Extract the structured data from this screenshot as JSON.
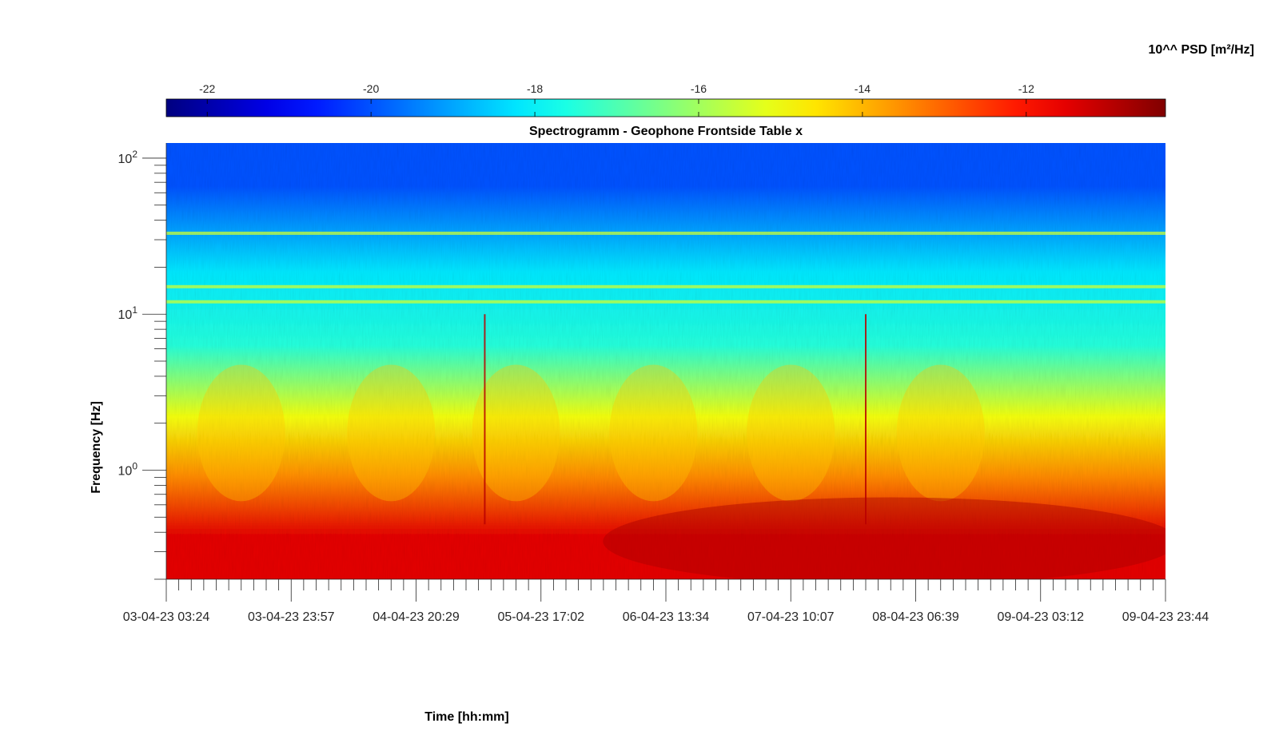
{
  "chart_data": {
    "type": "heatmap",
    "title": "Spectrogramm - Geophone Frontside Table x",
    "xlabel": "Time [hh:mm]",
    "ylabel": "Frequency [Hz]",
    "colorbar": {
      "label": "10^^ PSD [m²/Hz]",
      "colormap": "jet",
      "range": [
        -22.5,
        -10.3
      ],
      "ticks": [
        -22,
        -20,
        -18,
        -16,
        -14,
        -12
      ],
      "orientation": "horizontal",
      "placement": "top"
    },
    "x": {
      "tick_labels": [
        "03-04-23 03:24",
        "03-04-23 23:57",
        "04-04-23 20:29",
        "05-04-23 17:02",
        "06-04-23 13:34",
        "07-04-23 10:07",
        "08-04-23 06:39",
        "09-04-23 03:12",
        "09-04-23 23:44"
      ],
      "minor_ticks_per_interval": 10
    },
    "y": {
      "scale": "log",
      "range": [
        0.2,
        125
      ],
      "tick_labels": [
        {
          "base": "10",
          "exp": "0",
          "value": 1
        },
        {
          "base": "10",
          "exp": "1",
          "value": 10
        },
        {
          "base": "10",
          "exp": "2",
          "value": 100
        }
      ]
    },
    "frequency_bands_log10_psd": [
      {
        "f_min": 0.2,
        "f_max": 0.7,
        "log10_psd": -11.5
      },
      {
        "f_min": 0.7,
        "f_max": 1.2,
        "log10_psd": -13.5
      },
      {
        "f_min": 1.2,
        "f_max": 4,
        "log10_psd": -15.0
      },
      {
        "f_min": 4,
        "f_max": 10,
        "log10_psd": -17.5
      },
      {
        "f_min": 10,
        "f_max": 35,
        "log10_psd": -18.2
      },
      {
        "f_min": 35,
        "f_max": 125,
        "log10_psd": -20.0
      }
    ],
    "tonal_lines_hz": [
      12,
      15,
      33
    ],
    "transient_events": [
      "05-04-23",
      "07-04-23"
    ]
  }
}
